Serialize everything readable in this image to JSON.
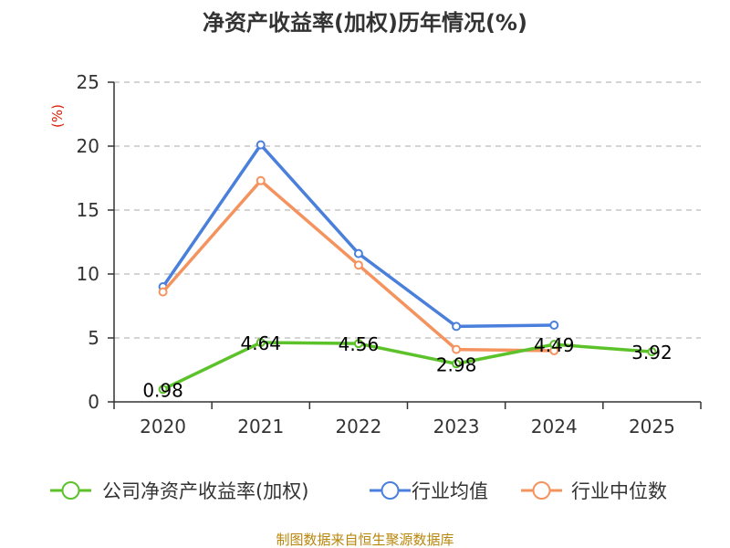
{
  "chart_data": {
    "type": "line",
    "title": "净资产收益率(加权)历年情况(%)",
    "ylabel": "(%)",
    "categories": [
      "2020",
      "2021",
      "2022",
      "2023",
      "2024",
      "2025"
    ],
    "ylim": [
      0,
      25
    ],
    "yticks": [
      0,
      5,
      10,
      15,
      20,
      25
    ],
    "grid": true,
    "legend_position": "bottom",
    "series": [
      {
        "name": "公司净资产收益率(加权)",
        "color": "#5cc22a",
        "values": [
          0.98,
          4.64,
          4.56,
          2.98,
          4.49,
          3.92
        ],
        "labels": [
          "0.98",
          "4.64",
          "4.56",
          "2.98",
          "4.49",
          "3.92"
        ]
      },
      {
        "name": "行业均值",
        "color": "#4a7fdb",
        "values": [
          9.0,
          20.1,
          11.6,
          5.9,
          6.0,
          null
        ]
      },
      {
        "name": "行业中位数",
        "color": "#f5935f",
        "values": [
          8.6,
          17.3,
          10.7,
          4.1,
          4.0,
          null
        ]
      }
    ],
    "source": "制图数据来自恒生聚源数据库"
  }
}
